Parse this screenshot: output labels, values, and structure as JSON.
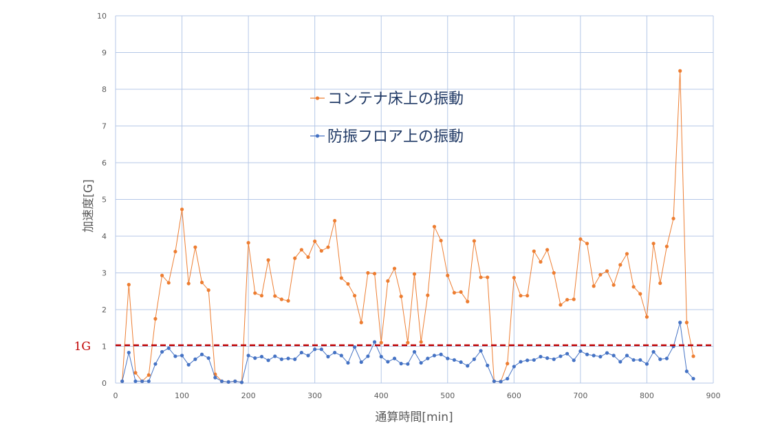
{
  "chart_data": {
    "type": "line",
    "xlabel": "通算時間[min]",
    "ylabel": "加速度[G]",
    "xlim": [
      0,
      900
    ],
    "ylim": [
      0,
      10
    ],
    "xticks": [
      0,
      100,
      200,
      300,
      400,
      500,
      600,
      700,
      800,
      900
    ],
    "yticks": [
      0,
      1,
      2,
      3,
      4,
      5,
      6,
      7,
      8,
      9,
      10
    ],
    "grid": true,
    "legend_position": "top-center",
    "reference_line": {
      "y": 1.03,
      "label": "1G",
      "color": "#c00000",
      "style": "dashed"
    },
    "series": [
      {
        "name": "コンテナ床上の振動",
        "color": "#ed7d31",
        "x": [
          10,
          20,
          30,
          40,
          50,
          60,
          70,
          80,
          90,
          100,
          110,
          120,
          130,
          140,
          150,
          160,
          170,
          180,
          190,
          200,
          210,
          220,
          230,
          240,
          250,
          260,
          270,
          280,
          290,
          300,
          310,
          320,
          330,
          340,
          350,
          360,
          370,
          380,
          390,
          400,
          410,
          420,
          430,
          440,
          450,
          460,
          470,
          480,
          490,
          500,
          510,
          520,
          530,
          540,
          550,
          560,
          570,
          580,
          590,
          600,
          610,
          620,
          630,
          640,
          650,
          660,
          670,
          680,
          690,
          700,
          710,
          720,
          730,
          740,
          750,
          760,
          770,
          780,
          790,
          800,
          810,
          820,
          830,
          840,
          850,
          860,
          870
        ],
        "values": [
          0.05,
          2.68,
          0.28,
          0.05,
          0.22,
          1.75,
          2.93,
          2.73,
          3.58,
          4.73,
          2.71,
          3.7,
          2.74,
          2.53,
          0.24,
          0.05,
          0.03,
          0.05,
          0.02,
          3.82,
          2.45,
          2.38,
          3.35,
          2.37,
          2.28,
          2.24,
          3.4,
          3.63,
          3.43,
          3.86,
          3.6,
          3.7,
          4.42,
          2.86,
          2.7,
          2.38,
          1.65,
          3.0,
          2.98,
          1.1,
          2.78,
          3.12,
          2.36,
          1.1,
          2.97,
          1.12,
          2.39,
          4.26,
          3.88,
          2.93,
          2.46,
          2.48,
          2.22,
          3.87,
          2.88,
          2.88,
          0.05,
          0.04,
          0.53,
          2.87,
          2.38,
          2.38,
          3.59,
          3.3,
          3.63,
          3.0,
          2.13,
          2.27,
          2.28,
          3.92,
          3.8,
          2.64,
          2.95,
          3.05,
          2.67,
          3.22,
          3.52,
          2.62,
          2.43,
          1.8,
          3.8,
          2.72,
          3.72,
          4.48,
          8.5,
          1.65,
          0.73
        ]
      },
      {
        "name": "防振フロア上の振動",
        "color": "#4472c4",
        "x": [
          10,
          20,
          30,
          40,
          50,
          60,
          70,
          80,
          90,
          100,
          110,
          120,
          130,
          140,
          150,
          160,
          170,
          180,
          190,
          200,
          210,
          220,
          230,
          240,
          250,
          260,
          270,
          280,
          290,
          300,
          310,
          320,
          330,
          340,
          350,
          360,
          370,
          380,
          390,
          400,
          410,
          420,
          430,
          440,
          450,
          460,
          470,
          480,
          490,
          500,
          510,
          520,
          530,
          540,
          550,
          560,
          570,
          580,
          590,
          600,
          610,
          620,
          630,
          640,
          650,
          660,
          670,
          680,
          690,
          700,
          710,
          720,
          730,
          740,
          750,
          760,
          770,
          780,
          790,
          800,
          810,
          820,
          830,
          840,
          850,
          860,
          870
        ],
        "values": [
          0.05,
          0.83,
          0.05,
          0.05,
          0.05,
          0.52,
          0.85,
          0.95,
          0.73,
          0.75,
          0.5,
          0.65,
          0.78,
          0.68,
          0.15,
          0.05,
          0.03,
          0.05,
          0.02,
          0.75,
          0.68,
          0.72,
          0.62,
          0.73,
          0.65,
          0.67,
          0.65,
          0.83,
          0.75,
          0.92,
          0.92,
          0.72,
          0.83,
          0.75,
          0.55,
          0.98,
          0.57,
          0.73,
          1.12,
          0.72,
          0.58,
          0.67,
          0.53,
          0.52,
          0.85,
          0.55,
          0.67,
          0.75,
          0.78,
          0.67,
          0.63,
          0.57,
          0.47,
          0.65,
          0.88,
          0.48,
          0.05,
          0.04,
          0.12,
          0.45,
          0.58,
          0.62,
          0.63,
          0.72,
          0.68,
          0.65,
          0.73,
          0.8,
          0.62,
          0.87,
          0.78,
          0.75,
          0.72,
          0.82,
          0.75,
          0.58,
          0.75,
          0.63,
          0.63,
          0.52,
          0.85,
          0.65,
          0.67,
          1.0,
          1.65,
          0.32,
          0.12
        ]
      }
    ]
  }
}
